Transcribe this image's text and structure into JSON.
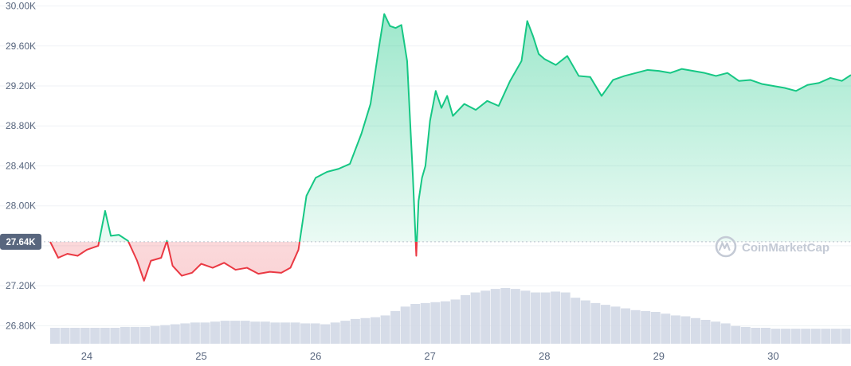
{
  "watermark": {
    "text": "CoinMarketCap"
  },
  "colors": {
    "up_line": "#16c784",
    "down_line": "#ea3943",
    "up_fill_top": "#16c784",
    "down_fill": "#ea3943",
    "volume": "#cfd6e4",
    "grid": "#eff2f5",
    "reference_bg": "#58667e",
    "tick_text": "#58667e"
  },
  "chart_data": {
    "type": "line",
    "reference_price": 27640,
    "reference_label": "27.64K",
    "y_ticks": [
      26800,
      27200,
      27600,
      28000,
      28400,
      28800,
      29200,
      29600,
      30000
    ],
    "y_tick_labels": [
      "26.80K",
      "27.20K",
      "",
      "28.00K",
      "28.40K",
      "28.80K",
      "29.20K",
      "29.60K",
      "30.00K"
    ],
    "ylim": [
      26620,
      30060
    ],
    "xlim": [
      23.68,
      30.68
    ],
    "x_ticks": [
      24,
      25,
      26,
      27,
      28,
      29,
      30
    ],
    "x_tick_labels": [
      "24",
      "25",
      "26",
      "27",
      "28",
      "29",
      "30"
    ],
    "grid": true,
    "series": [
      {
        "x": [
          23.68,
          23.75,
          23.83,
          23.92,
          24.0,
          24.1,
          24.16,
          24.21,
          24.28,
          24.36,
          24.44,
          24.5,
          24.56,
          24.65,
          24.7,
          24.75,
          24.83,
          24.92,
          25.0,
          25.1,
          25.2,
          25.3,
          25.4,
          25.5,
          25.6,
          25.7,
          25.78,
          25.85,
          25.92,
          26.0,
          26.1,
          26.2,
          26.3,
          26.4,
          26.48,
          26.55,
          26.6,
          26.65,
          26.7,
          26.75,
          26.8,
          26.85,
          26.88,
          26.9,
          26.93,
          26.96,
          27.0,
          27.05,
          27.1,
          27.15,
          27.2,
          27.3,
          27.4,
          27.5,
          27.6,
          27.7,
          27.8,
          27.85,
          27.9,
          27.95,
          28.0,
          28.1,
          28.2,
          28.3,
          28.4,
          28.5,
          28.6,
          28.7,
          28.8,
          28.9,
          29.0,
          29.1,
          29.2,
          29.3,
          29.4,
          29.5,
          29.6,
          29.7,
          29.8,
          29.9,
          30.0,
          30.1,
          30.2,
          30.3,
          30.4,
          30.5,
          30.6,
          30.68
        ],
        "values": [
          27640,
          27480,
          27520,
          27500,
          27560,
          27600,
          27950,
          27700,
          27710,
          27650,
          27450,
          27250,
          27450,
          27480,
          27650,
          27400,
          27300,
          27330,
          27420,
          27380,
          27430,
          27360,
          27380,
          27320,
          27340,
          27330,
          27380,
          27560,
          28100,
          28280,
          28340,
          28370,
          28420,
          28720,
          29020,
          29560,
          29920,
          29800,
          29780,
          29810,
          29450,
          28300,
          27500,
          28050,
          28280,
          28400,
          28850,
          29150,
          28980,
          29100,
          28900,
          29020,
          28960,
          29050,
          29000,
          29250,
          29450,
          29850,
          29700,
          29520,
          29470,
          29410,
          29500,
          29300,
          29290,
          29100,
          29260,
          29300,
          29330,
          29360,
          29350,
          29330,
          29370,
          29350,
          29330,
          29300,
          29330,
          29250,
          29260,
          29220,
          29200,
          29180,
          29150,
          29210,
          29230,
          29280,
          29250,
          29310
        ]
      }
    ],
    "volume_bars": [
      0.18,
      0.18,
      0.18,
      0.18,
      0.18,
      0.18,
      0.18,
      0.19,
      0.19,
      0.19,
      0.2,
      0.21,
      0.22,
      0.23,
      0.24,
      0.24,
      0.25,
      0.26,
      0.26,
      0.26,
      0.25,
      0.25,
      0.24,
      0.24,
      0.24,
      0.23,
      0.23,
      0.22,
      0.24,
      0.26,
      0.28,
      0.29,
      0.3,
      0.32,
      0.37,
      0.42,
      0.45,
      0.46,
      0.47,
      0.48,
      0.5,
      0.55,
      0.58,
      0.6,
      0.62,
      0.63,
      0.62,
      0.6,
      0.58,
      0.58,
      0.59,
      0.58,
      0.52,
      0.49,
      0.46,
      0.44,
      0.42,
      0.4,
      0.38,
      0.37,
      0.36,
      0.34,
      0.32,
      0.31,
      0.29,
      0.27,
      0.25,
      0.23,
      0.2,
      0.19,
      0.18,
      0.18,
      0.17,
      0.17,
      0.17,
      0.17,
      0.17,
      0.17,
      0.17,
      0.17
    ]
  }
}
